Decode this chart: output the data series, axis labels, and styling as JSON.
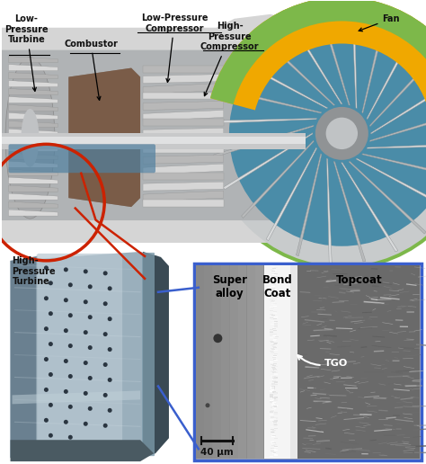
{
  "fig_width": 4.74,
  "fig_height": 5.16,
  "dpi": 100,
  "bg_color": "#ffffff",
  "labels": {
    "low_pressure_turbine": "Low-\nPressure\nTurbine",
    "combustor": "Combustor",
    "low_pressure_compressor": "Low-Pressure\nCompressor",
    "high_pressure_compressor": "High-\nPressure\nCompressor",
    "fan": "Fan",
    "high_pressure_turbine": "High-\nPressure\nTurbine",
    "super_alloy": "Super\nalloy",
    "bond_coat": "Bond\nCoat",
    "topcoat": "Topcoat",
    "tgo": "TGO",
    "scale": "40 μm"
  },
  "red_circle_color": "#cc2200",
  "blue_box_color": "#3a5fcd",
  "blue_line_color": "#3a5fcd",
  "fan_green": "#7db84a",
  "fan_yellow": "#f0a800",
  "fan_teal": "#4a8ca8",
  "annotation_color": "#111111",
  "font_size_label": 7.0,
  "font_size_micro_label": 8.5,
  "font_size_tgo": 8.0,
  "font_size_scale": 7.5
}
